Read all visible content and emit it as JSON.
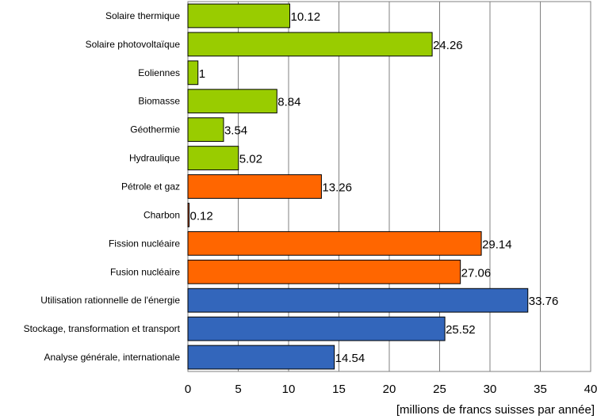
{
  "chart_data": {
    "type": "bar",
    "orientation": "horizontal",
    "categories": [
      "Solaire thermique",
      "Solaire photovoltaïque",
      "Eoliennes",
      "Biomasse",
      "Géothermie",
      "Hydraulique",
      "Pétrole et gaz",
      "Charbon",
      "Fission nucléaire",
      "Fusion nucléaire",
      "Utilisation rationnelle de l'énergie",
      "Stockage, transformation et transport",
      "Analyse générale, internationale"
    ],
    "values": [
      10.12,
      24.26,
      1,
      8.84,
      3.54,
      5.02,
      13.26,
      0.12,
      29.14,
      27.06,
      33.76,
      25.52,
      14.54
    ],
    "value_labels": [
      "10.12",
      "24.26",
      "1",
      "8.84",
      "3.54",
      "5.02",
      "13.26",
      "0.12",
      "29.14",
      "27.06",
      "33.76",
      "25.52",
      "14.54"
    ],
    "bar_colors": [
      "#99cc00",
      "#99cc00",
      "#99cc00",
      "#99cc00",
      "#99cc00",
      "#99cc00",
      "#ff6600",
      "#ff6600",
      "#ff6600",
      "#ff6600",
      "#3366bb",
      "#3366bb",
      "#3366bb"
    ],
    "xlabel": "[millions de francs suisses par année]",
    "xlim": [
      0,
      40
    ],
    "xticks": [
      0,
      5,
      10,
      15,
      20,
      25,
      30,
      35,
      40
    ],
    "grid": true
  }
}
